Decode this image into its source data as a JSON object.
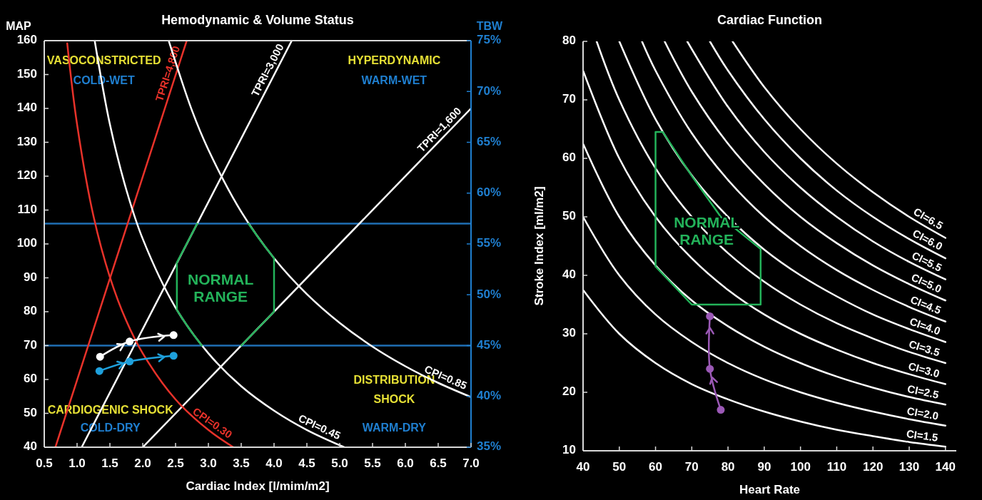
{
  "chart_data": [
    {
      "type": "line",
      "title": "Hemodynamic & Volume Status",
      "xlabel": "Cardiac Index [l/mim/m2]",
      "ylabel": "MAP",
      "y2label": "TBW",
      "xlim": [
        0.5,
        7
      ],
      "xticks": [
        0.5,
        {
          "value": 1,
          "label": "1.0"
        },
        1.5,
        {
          "value": 2,
          "label": "2.0"
        },
        2.5,
        {
          "value": 3,
          "label": "3.0"
        },
        3.5,
        {
          "value": 4,
          "label": "4.0"
        },
        4.5,
        {
          "value": 5,
          "label": "5.0"
        },
        5.5,
        {
          "value": 6,
          "label": "6.0"
        },
        6.5,
        {
          "value": 7,
          "label": "7.0"
        }
      ],
      "ylim": [
        40,
        160
      ],
      "yticks": [
        40,
        50,
        60,
        70,
        80,
        90,
        100,
        110,
        120,
        130,
        140,
        150,
        160
      ],
      "y2lim": [
        35,
        75
      ],
      "y2ticks": [
        {
          "value": 35,
          "label": "35%"
        },
        {
          "value": 40,
          "label": "40%"
        },
        {
          "value": 45,
          "label": "45%"
        },
        {
          "value": 50,
          "label": "50%"
        },
        {
          "value": 55,
          "label": "55%"
        },
        {
          "value": 60,
          "label": "60%"
        },
        {
          "value": 65,
          "label": "65%"
        },
        {
          "value": 70,
          "label": "70%"
        },
        {
          "value": 75,
          "label": "75%"
        }
      ],
      "ref_lines": [
        {
          "axis": "y",
          "value": 106,
          "color": "#1f6fb5"
        },
        {
          "axis": "y",
          "value": 70,
          "color": "#1f6fb5"
        }
      ],
      "annotations": [
        "VASOCONSTRICTED",
        "COLD-WET",
        "HYPERDYNAMIC",
        "WARM-WET",
        "CARDIOGENIC SHOCK",
        "COLD-DRY",
        "DISTRIBUTION\nSHOCK",
        "WARM-DRY"
      ],
      "series": [
        {
          "name": "TPRI=4,800",
          "color": "#e8322a",
          "x": [
            0.67,
            2.67
          ],
          "values": [
            40,
            160
          ]
        },
        {
          "name": "TPRI=3,000",
          "color": "#ffffff",
          "x": [
            1.07,
            4.27
          ],
          "values": [
            40,
            160
          ]
        },
        {
          "name": "TPRI=1,600",
          "color": "#ffffff",
          "x": [
            2.0,
            7.0
          ],
          "values": [
            40,
            140
          ]
        },
        {
          "name": "CPI=0.30",
          "color": "#e8322a",
          "x": [
            0.85,
            1.0,
            1.25,
            1.5,
            1.75,
            2.0,
            2.5,
            3.0,
            3.38
          ],
          "values": [
            159.2,
            135.3,
            108.2,
            90.2,
            77.3,
            67.7,
            54.1,
            45.1,
            40
          ]
        },
        {
          "name": "CPI=0.45",
          "color": "#ffffff",
          "x": [
            1.27,
            1.5,
            1.75,
            2.0,
            2.5,
            3.0,
            3.5,
            4.0,
            4.5,
            5.07
          ],
          "values": [
            159.8,
            135.3,
            116,
            101.5,
            81.2,
            67.7,
            58,
            50.8,
            45.1,
            40
          ]
        },
        {
          "name": "CPI=0.85",
          "color": "#ffffff",
          "x": [
            2.4,
            2.75,
            3.0,
            3.5,
            4.0,
            4.5,
            5.0,
            5.5,
            6.0,
            6.5,
            7.0
          ],
          "values": [
            159.7,
            139.4,
            127.8,
            109.5,
            95.8,
            85.2,
            76.7,
            69.7,
            63.9,
            59,
            54.8
          ]
        },
        {
          "name": "NORMAL RANGE",
          "color": "#23b35a",
          "x": [
            2.9,
            2.75,
            2.62,
            2.52,
            2.52,
            2.83,
            null,
            3.61,
            3.8,
            4.0,
            4.0,
            3.5
          ],
          "values": [
            70,
            73.8,
            77.5,
            80.5,
            94.5,
            106,
            null,
            106,
            100.8,
            95.8,
            80,
            70
          ]
        },
        {
          "color": "#ffffff",
          "marker": "circle",
          "x": [
            1.35,
            1.8,
            2.47
          ],
          "values": [
            66.7,
            71.2,
            73.1
          ]
        },
        {
          "color": "#1ea0dc",
          "marker": "circle",
          "x": [
            1.34,
            1.8,
            2.47
          ],
          "values": [
            62.5,
            65.3,
            67.0
          ]
        }
      ]
    },
    {
      "type": "line",
      "title": "Cardiac Function",
      "xlabel": "Heart Rate",
      "ylabel": "Stroke Index [ml/m2]",
      "xlim": [
        40,
        143
      ],
      "xticks": [
        40,
        50,
        60,
        70,
        80,
        90,
        100,
        110,
        120,
        130,
        140
      ],
      "ylim": [
        10,
        80
      ],
      "yticks": [
        10,
        20,
        30,
        40,
        50,
        60,
        70,
        80
      ],
      "series": [
        {
          "name": "CI=1.5",
          "color": "#ffffff",
          "x": [
            40,
            50,
            60,
            70,
            80,
            90,
            100,
            110,
            120,
            130,
            140
          ],
          "values": [
            37.5,
            30,
            25,
            21.4,
            18.8,
            16.7,
            15,
            13.6,
            12.5,
            11.5,
            10.7
          ]
        },
        {
          "name": "CI=2.0",
          "color": "#ffffff",
          "x": [
            40,
            50,
            60,
            70,
            80,
            90,
            100,
            110,
            120,
            130,
            140
          ],
          "values": [
            50,
            40,
            33.3,
            28.6,
            25,
            22.2,
            20,
            18.2,
            16.7,
            15.4,
            14.3
          ]
        },
        {
          "name": "CI=2.5",
          "color": "#ffffff",
          "x": [
            40,
            50,
            60,
            70,
            80,
            90,
            100,
            110,
            120,
            130,
            140
          ],
          "values": [
            62.5,
            50,
            41.7,
            35.7,
            31.3,
            27.8,
            25,
            22.7,
            20.8,
            19.2,
            17.9
          ]
        },
        {
          "name": "CI=3.0",
          "color": "#ffffff",
          "x": [
            40,
            50,
            60,
            70,
            80,
            90,
            100,
            110,
            120,
            130,
            140
          ],
          "values": [
            75,
            60,
            50,
            42.9,
            37.5,
            33.3,
            30,
            27.3,
            25,
            23.1,
            21.4
          ]
        },
        {
          "name": "CI=3.5",
          "color": "#ffffff",
          "x": [
            43.75,
            50,
            60,
            70,
            80,
            90,
            100,
            110,
            120,
            130,
            140
          ],
          "values": [
            80,
            70,
            58.3,
            50,
            43.8,
            38.9,
            35,
            31.8,
            29.2,
            26.9,
            25
          ]
        },
        {
          "name": "CI=4.0",
          "color": "#ffffff",
          "x": [
            50,
            60,
            70,
            80,
            90,
            100,
            110,
            120,
            130,
            140
          ],
          "values": [
            80,
            66.7,
            57.1,
            50,
            44.4,
            40,
            36.4,
            33.3,
            30.8,
            28.6
          ]
        },
        {
          "name": "CI=4.5",
          "color": "#ffffff",
          "x": [
            56.25,
            60,
            70,
            80,
            90,
            100,
            110,
            120,
            130,
            140
          ],
          "values": [
            80,
            75,
            64.3,
            56.3,
            50,
            45,
            40.9,
            37.5,
            34.6,
            32.1
          ]
        },
        {
          "name": "CI=5.0",
          "color": "#ffffff",
          "x": [
            62.5,
            70,
            80,
            90,
            100,
            110,
            120,
            130,
            140
          ],
          "values": [
            80,
            71.4,
            62.5,
            55.6,
            50,
            45.5,
            41.7,
            38.5,
            35.7
          ]
        },
        {
          "name": "CI=5.5",
          "color": "#ffffff",
          "x": [
            68.75,
            80,
            90,
            100,
            110,
            120,
            130,
            140
          ],
          "values": [
            80,
            68.8,
            61.1,
            55,
            50,
            45.8,
            42.3,
            39.3
          ]
        },
        {
          "name": "CI=6.0",
          "color": "#ffffff",
          "x": [
            75,
            80,
            90,
            100,
            110,
            120,
            130,
            140
          ],
          "values": [
            80,
            75,
            66.7,
            60,
            54.5,
            50,
            46.2,
            42.9
          ]
        },
        {
          "name": "CI=6.5",
          "color": "#ffffff",
          "x": [
            81.25,
            90,
            100,
            110,
            120,
            130,
            140
          ],
          "values": [
            80,
            72.2,
            65,
            59.1,
            54.2,
            50,
            46.4
          ]
        },
        {
          "name": "NORMAL RANGE",
          "color": "#23b35a",
          "x": [
            60,
            60,
            62,
            70,
            78,
            89,
            89,
            null,
            89,
            70,
            60
          ],
          "values": [
            41.5,
            64.5,
            64.5,
            57,
            50,
            44.5,
            35,
            null,
            35,
            35,
            41.5
          ]
        },
        {
          "color": "#9b59b6",
          "marker": "circle",
          "x": [
            78,
            75,
            75
          ],
          "values": [
            17,
            24,
            33
          ]
        }
      ]
    }
  ]
}
